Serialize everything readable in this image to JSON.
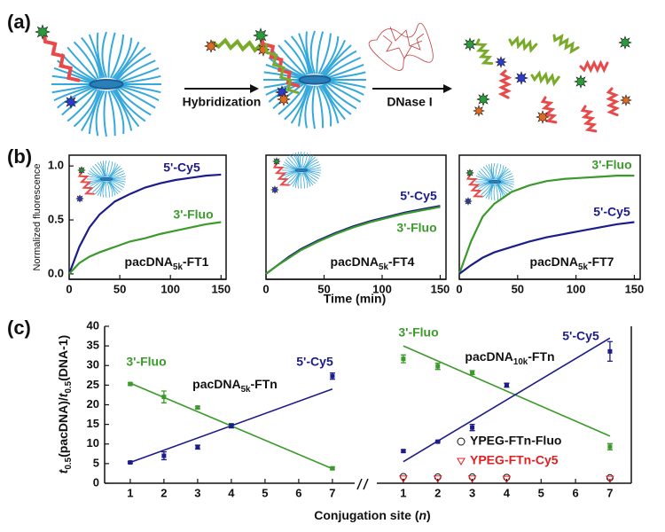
{
  "schematic": {
    "panel_label": "(a)",
    "steps": [
      "Hybridization",
      "DNase I"
    ]
  },
  "chart_data": [
    {
      "type": "line",
      "panel_label": "(b)",
      "ylabel": "Normalized fluorescence",
      "x": [
        0,
        10,
        20,
        30,
        45,
        60,
        75,
        90,
        105,
        120,
        135,
        150
      ],
      "xlim": [
        0,
        155
      ],
      "xticks": [
        0,
        50,
        100,
        150
      ],
      "ylim": [
        -0.05,
        1.1
      ],
      "yticks": [
        {
          "value": 0,
          "label": "0.0"
        },
        {
          "value": 0.5,
          "label": "0.5"
        },
        {
          "value": 1,
          "label": "1.0"
        }
      ],
      "label_parts": [
        "pacDNA",
        "5k",
        "-FT1"
      ],
      "series": [
        {
          "name": "5'-Cy5",
          "color": "#1c1c8a",
          "values": [
            0,
            0.25,
            0.43,
            0.55,
            0.67,
            0.74,
            0.8,
            0.84,
            0.87,
            0.89,
            0.91,
            0.92
          ]
        },
        {
          "name": "3'-Fluo",
          "color": "#3a9a2a",
          "values": [
            0,
            0.1,
            0.16,
            0.2,
            0.25,
            0.3,
            0.33,
            0.37,
            0.4,
            0.43,
            0.46,
            0.48
          ]
        }
      ]
    },
    {
      "type": "line",
      "xlabel": "Time (min)",
      "x": [
        0,
        10,
        20,
        30,
        45,
        60,
        75,
        90,
        105,
        120,
        135,
        150
      ],
      "xlim": [
        0,
        155
      ],
      "xticks": [
        0,
        50,
        100,
        150
      ],
      "ylim": [
        -0.05,
        1.1
      ],
      "label_parts": [
        "pacDNA",
        "5k",
        "-FT4"
      ],
      "series": [
        {
          "name": "5'-Cy5",
          "color": "#1c1c8a",
          "values": [
            0,
            0.08,
            0.16,
            0.23,
            0.31,
            0.38,
            0.44,
            0.49,
            0.53,
            0.57,
            0.6,
            0.63
          ]
        },
        {
          "name": "3'-Fluo",
          "color": "#3a9a2a",
          "values": [
            0,
            0.08,
            0.15,
            0.22,
            0.3,
            0.37,
            0.43,
            0.48,
            0.52,
            0.56,
            0.59,
            0.62
          ]
        }
      ]
    },
    {
      "type": "line",
      "x": [
        0,
        10,
        20,
        30,
        45,
        60,
        75,
        90,
        105,
        120,
        135,
        150
      ],
      "xlim": [
        0,
        155
      ],
      "xticks": [
        0,
        50,
        100,
        150
      ],
      "ylim": [
        -0.05,
        1.1
      ],
      "label_parts": [
        "pacDNA",
        "5k",
        "-FT7"
      ],
      "series": [
        {
          "name": "3'-Fluo",
          "color": "#3a9a2a",
          "values": [
            0,
            0.3,
            0.53,
            0.65,
            0.76,
            0.82,
            0.86,
            0.88,
            0.89,
            0.9,
            0.91,
            0.91
          ]
        },
        {
          "name": "5'-Cy5",
          "color": "#1c1c8a",
          "values": [
            0,
            0.08,
            0.15,
            0.2,
            0.25,
            0.3,
            0.34,
            0.37,
            0.4,
            0.43,
            0.46,
            0.48
          ]
        }
      ]
    },
    {
      "type": "scatter",
      "panel_label": "(c)",
      "ylabel_parts": [
        "t",
        "0.5",
        "(pacDNA)/",
        "t",
        "0.5",
        "(DNA-1)"
      ],
      "x": [
        1,
        2,
        3,
        4,
        7
      ],
      "xlim": [
        0.24,
        7.66
      ],
      "xticks": [
        1,
        2,
        3,
        4,
        5,
        6,
        7
      ],
      "ylim": [
        0,
        40
      ],
      "yticks": [
        0,
        5,
        10,
        15,
        20,
        25,
        30,
        35,
        40
      ],
      "label_parts": [
        "pacDNA",
        "5k",
        "-FTn"
      ],
      "series": [
        {
          "name": "3'-Fluo",
          "color": "#3a9a2a",
          "marker": "square",
          "values": [
            25.3,
            22,
            19.3,
            14.8,
            3.8
          ],
          "errors": [
            0.3,
            1.5,
            0.3,
            0.3,
            0.3
          ],
          "fit_x": [
            1,
            7
          ],
          "fit_values": [
            25.5,
            3.7
          ]
        },
        {
          "name": "5'-Cy5",
          "color": "#1c1c8a",
          "marker": "square",
          "values": [
            5.3,
            7,
            9.2,
            14.6,
            27.3
          ],
          "errors": [
            0.2,
            1,
            0.5,
            0.5,
            0.8
          ],
          "fit_x": [
            1,
            7
          ],
          "fit_values": [
            5.3,
            24
          ]
        }
      ]
    },
    {
      "type": "scatter",
      "xlabel_parts": [
        "Conjugation site (",
        "n",
        ")"
      ],
      "x": [
        1,
        2,
        3,
        4,
        7
      ],
      "xlim": [
        0.23,
        7.62
      ],
      "xticks": [
        1,
        2,
        3,
        4,
        5,
        6,
        7
      ],
      "ylim": [
        0,
        40
      ],
      "label_parts": [
        "pacDNA",
        "10k",
        "-FTn"
      ],
      "series": [
        {
          "name": "3'-Fluo",
          "color": "#3a9a2a",
          "marker": "square",
          "values": [
            31.7,
            29.8,
            28.2,
            25,
            9.3
          ],
          "errors": [
            1,
            0.8,
            0.5,
            0.5,
            0.8
          ],
          "fit_x": [
            1,
            7
          ],
          "fit_values": [
            35,
            12
          ]
        },
        {
          "name": "5'-Cy5",
          "color": "#1c1c8a",
          "marker": "square",
          "values": [
            8.2,
            10.6,
            14.2,
            25,
            33.6
          ],
          "errors": [
            0.3,
            0.2,
            0.8,
            0.5,
            2.5
          ],
          "fit_x": [
            1,
            7
          ],
          "fit_values": [
            5.5,
            37
          ]
        },
        {
          "name": "YPEG-FTn-Fluo",
          "color": "#111111",
          "marker": "circle",
          "values": [
            1.7,
            1.6,
            1.6,
            1.5,
            1.4
          ]
        },
        {
          "name": "YPEG-FTn-Cy5",
          "color": "#e02020",
          "marker": "triangle",
          "values": [
            1.2,
            1.2,
            1.2,
            1.1,
            1.1
          ]
        }
      ]
    }
  ]
}
